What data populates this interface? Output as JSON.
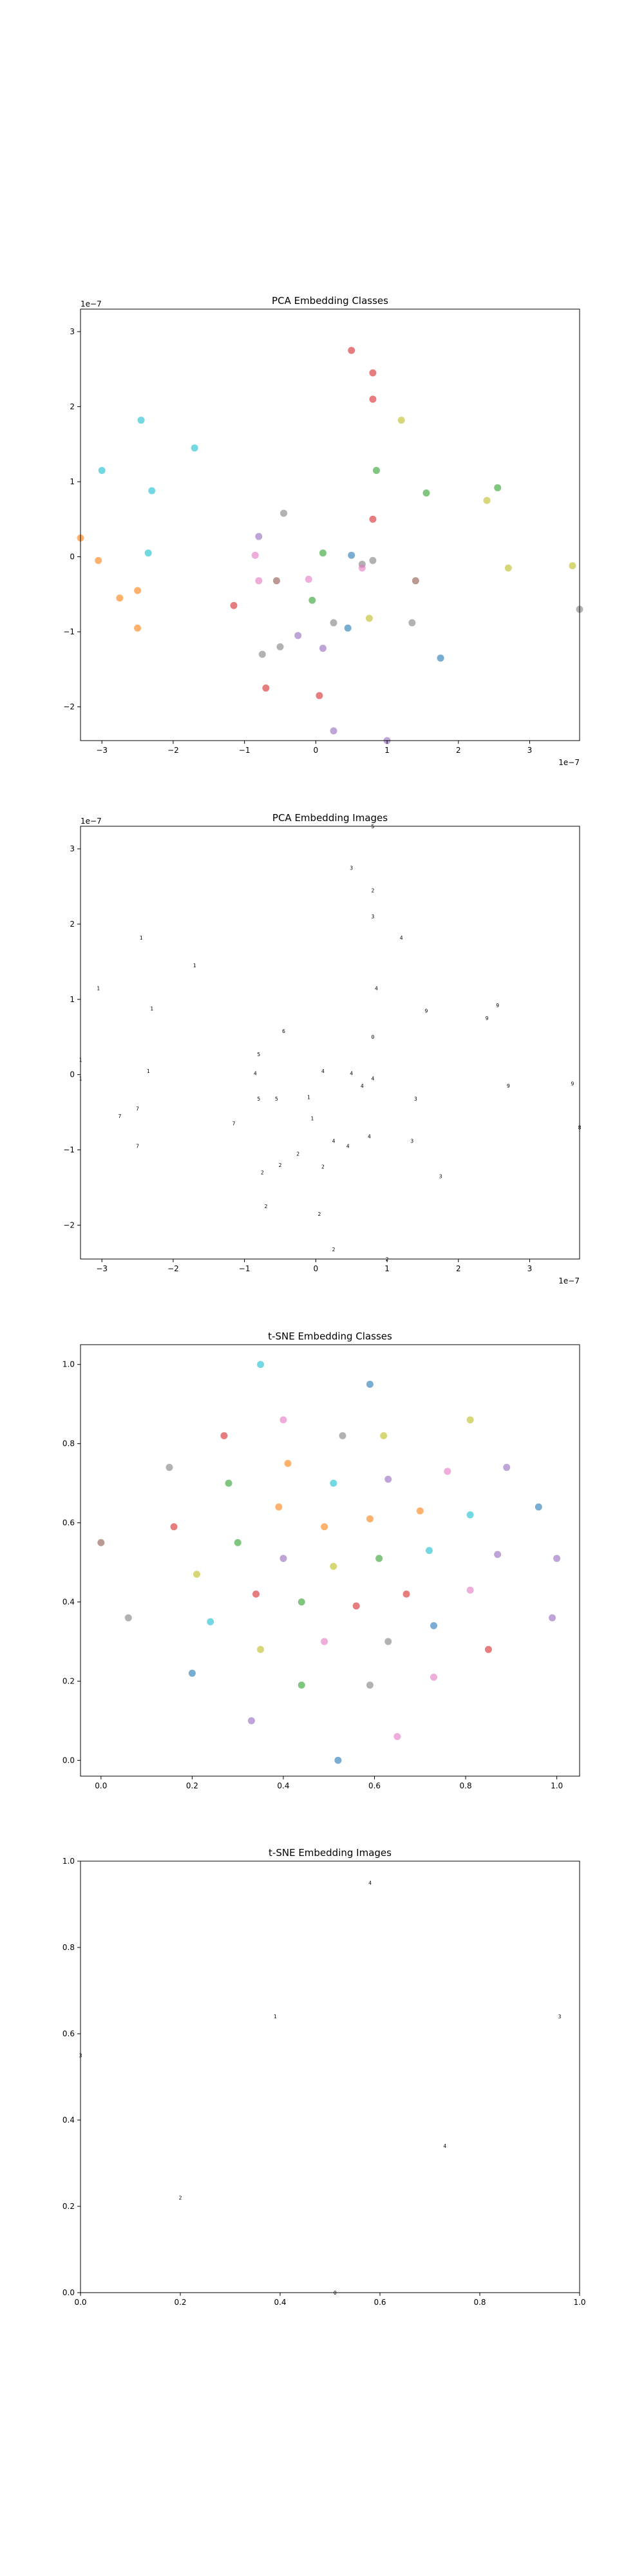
{
  "palette": [
    "#1f77b4",
    "#ff7f0e",
    "#2ca02c",
    "#d62728",
    "#9467bd",
    "#8c564b",
    "#e377c2",
    "#7f7f7f",
    "#bcbd22",
    "#17becf"
  ],
  "chart_data": [
    {
      "type": "scatter",
      "title": "PCA Embedding Classes",
      "xlim": [
        -3.3,
        3.7
      ],
      "ylim": [
        -2.45,
        3.3
      ],
      "xticks": [
        {
          "v": -3,
          "label": "−3"
        },
        {
          "v": -2,
          "label": "−2"
        },
        {
          "v": -1,
          "label": "−1"
        },
        {
          "v": 0,
          "label": "0"
        },
        {
          "v": 1,
          "label": "1"
        },
        {
          "v": 2,
          "label": "2"
        },
        {
          "v": 3,
          "label": "3"
        }
      ],
      "yticks": [
        {
          "v": -2,
          "label": "−2"
        },
        {
          "v": -1,
          "label": "−1"
        },
        {
          "v": 0,
          "label": "0"
        },
        {
          "v": 1,
          "label": "1"
        },
        {
          "v": 2,
          "label": "2"
        },
        {
          "v": 3,
          "label": "3"
        }
      ],
      "x_offset_label": "1e−7",
      "y_offset_label": "1e−7",
      "points": [
        {
          "x": -3.3,
          "y": 0.25,
          "c": 1
        },
        {
          "x": -3.05,
          "y": -0.05,
          "c": 1
        },
        {
          "x": -2.75,
          "y": -0.55,
          "c": 1
        },
        {
          "x": -2.5,
          "y": -0.45,
          "c": 1
        },
        {
          "x": -2.5,
          "y": -0.95,
          "c": 1
        },
        {
          "x": -3.0,
          "y": 1.15,
          "c": 9
        },
        {
          "x": -2.45,
          "y": 1.82,
          "c": 9
        },
        {
          "x": -2.3,
          "y": 0.88,
          "c": 9
        },
        {
          "x": -2.35,
          "y": 0.05,
          "c": 9
        },
        {
          "x": -1.7,
          "y": 1.45,
          "c": 9
        },
        {
          "x": 0.5,
          "y": 2.75,
          "c": 3
        },
        {
          "x": 0.8,
          "y": 2.45,
          "c": 3
        },
        {
          "x": 0.8,
          "y": 2.1,
          "c": 3
        },
        {
          "x": 0.8,
          "y": 0.5,
          "c": 3
        },
        {
          "x": -1.15,
          "y": -0.65,
          "c": 3
        },
        {
          "x": -0.7,
          "y": -1.75,
          "c": 3
        },
        {
          "x": 0.05,
          "y": -1.85,
          "c": 3
        },
        {
          "x": 1.2,
          "y": 1.82,
          "c": 8
        },
        {
          "x": 2.4,
          "y": 0.75,
          "c": 8
        },
        {
          "x": 2.7,
          "y": -0.15,
          "c": 8
        },
        {
          "x": 3.6,
          "y": -0.12,
          "c": 8
        },
        {
          "x": 0.75,
          "y": -0.82,
          "c": 8
        },
        {
          "x": 0.85,
          "y": 1.15,
          "c": 2
        },
        {
          "x": 1.55,
          "y": 0.85,
          "c": 2
        },
        {
          "x": 2.55,
          "y": 0.92,
          "c": 2
        },
        {
          "x": 0.1,
          "y": 0.05,
          "c": 2
        },
        {
          "x": -0.05,
          "y": -0.58,
          "c": 2
        },
        {
          "x": -0.8,
          "y": 0.27,
          "c": 4
        },
        {
          "x": -0.25,
          "y": -1.05,
          "c": 4
        },
        {
          "x": 0.1,
          "y": -1.22,
          "c": 4
        },
        {
          "x": 0.25,
          "y": -2.32,
          "c": 4
        },
        {
          "x": 1.0,
          "y": -2.45,
          "c": 4
        },
        {
          "x": -0.45,
          "y": 0.58,
          "c": 7
        },
        {
          "x": 0.65,
          "y": -0.1,
          "c": 7
        },
        {
          "x": 0.8,
          "y": -0.05,
          "c": 7
        },
        {
          "x": 0.25,
          "y": -0.88,
          "c": 7
        },
        {
          "x": 1.35,
          "y": -0.88,
          "c": 7
        },
        {
          "x": -0.5,
          "y": -1.2,
          "c": 7
        },
        {
          "x": -0.75,
          "y": -1.3,
          "c": 7
        },
        {
          "x": 3.7,
          "y": -0.7,
          "c": 7
        },
        {
          "x": -0.85,
          "y": 0.02,
          "c": 6
        },
        {
          "x": -0.8,
          "y": -0.32,
          "c": 6
        },
        {
          "x": -0.1,
          "y": -0.3,
          "c": 6
        },
        {
          "x": 0.65,
          "y": -0.15,
          "c": 6
        },
        {
          "x": -0.55,
          "y": -0.32,
          "c": 5
        },
        {
          "x": 1.4,
          "y": -0.32,
          "c": 5
        },
        {
          "x": 0.5,
          "y": 0.02,
          "c": 0
        },
        {
          "x": 0.45,
          "y": -0.95,
          "c": 0
        },
        {
          "x": 1.75,
          "y": -1.35,
          "c": 0
        }
      ]
    },
    {
      "type": "scatter",
      "title": "PCA Embedding Images",
      "xlim": [
        -3.3,
        3.7
      ],
      "ylim": [
        -2.45,
        3.3
      ],
      "xticks": [
        {
          "v": -3,
          "label": "−3"
        },
        {
          "v": -2,
          "label": "−2"
        },
        {
          "v": -1,
          "label": "−1"
        },
        {
          "v": 0,
          "label": "0"
        },
        {
          "v": 1,
          "label": "1"
        },
        {
          "v": 2,
          "label": "2"
        },
        {
          "v": 3,
          "label": "3"
        }
      ],
      "yticks": [
        {
          "v": -2,
          "label": "−2"
        },
        {
          "v": -1,
          "label": "−1"
        },
        {
          "v": 0,
          "label": "0"
        },
        {
          "v": 1,
          "label": "1"
        },
        {
          "v": 2,
          "label": "2"
        },
        {
          "v": 3,
          "label": "3"
        }
      ],
      "x_offset_label": "1e−7",
      "y_offset_label": "1e−7",
      "markers": [
        {
          "x": -3.3,
          "y": 0.2,
          "g": "1"
        },
        {
          "x": -3.05,
          "y": 1.15,
          "g": "1"
        },
        {
          "x": -2.45,
          "y": 1.82,
          "g": "1"
        },
        {
          "x": -2.3,
          "y": 0.88,
          "g": "1"
        },
        {
          "x": -2.35,
          "y": 0.05,
          "g": "1"
        },
        {
          "x": -1.7,
          "y": 1.45,
          "g": "1"
        },
        {
          "x": -2.75,
          "y": -0.55,
          "g": "7"
        },
        {
          "x": -2.5,
          "y": -0.95,
          "g": "7"
        },
        {
          "x": -3.3,
          "y": -0.05,
          "g": "1"
        },
        {
          "x": -2.5,
          "y": -0.45,
          "g": "7"
        },
        {
          "x": 0.8,
          "y": 3.3,
          "g": "5"
        },
        {
          "x": 0.5,
          "y": 2.75,
          "g": "3"
        },
        {
          "x": 0.8,
          "y": 2.45,
          "g": "2"
        },
        {
          "x": 0.8,
          "y": 2.1,
          "g": "3"
        },
        {
          "x": 1.2,
          "y": 1.82,
          "g": "4"
        },
        {
          "x": 0.85,
          "y": 1.15,
          "g": "4"
        },
        {
          "x": 1.55,
          "y": 0.85,
          "g": "9"
        },
        {
          "x": 2.55,
          "y": 0.92,
          "g": "9"
        },
        {
          "x": 2.4,
          "y": 0.75,
          "g": "9"
        },
        {
          "x": 0.8,
          "y": 0.5,
          "g": "0"
        },
        {
          "x": -0.45,
          "y": 0.58,
          "g": "6"
        },
        {
          "x": -0.8,
          "y": 0.27,
          "g": "5"
        },
        {
          "x": -0.85,
          "y": 0.02,
          "g": "4"
        },
        {
          "x": 0.1,
          "y": 0.05,
          "g": "4"
        },
        {
          "x": 0.5,
          "y": 0.02,
          "g": "4"
        },
        {
          "x": 0.8,
          "y": -0.05,
          "g": "4"
        },
        {
          "x": 0.65,
          "y": -0.15,
          "g": "4"
        },
        {
          "x": -0.8,
          "y": -0.32,
          "g": "5"
        },
        {
          "x": -0.55,
          "y": -0.32,
          "g": "5"
        },
        {
          "x": -0.1,
          "y": -0.3,
          "g": "1"
        },
        {
          "x": 1.4,
          "y": -0.32,
          "g": "3"
        },
        {
          "x": 2.7,
          "y": -0.15,
          "g": "9"
        },
        {
          "x": 3.6,
          "y": -0.12,
          "g": "9"
        },
        {
          "x": 3.7,
          "y": -0.7,
          "g": "8"
        },
        {
          "x": -1.15,
          "y": -0.65,
          "g": "7"
        },
        {
          "x": -0.05,
          "y": -0.58,
          "g": "1"
        },
        {
          "x": 0.75,
          "y": -0.82,
          "g": "4"
        },
        {
          "x": 0.25,
          "y": -0.88,
          "g": "4"
        },
        {
          "x": 1.35,
          "y": -0.88,
          "g": "3"
        },
        {
          "x": 0.45,
          "y": -0.95,
          "g": "4"
        },
        {
          "x": -0.25,
          "y": -1.05,
          "g": "2"
        },
        {
          "x": -0.5,
          "y": -1.2,
          "g": "2"
        },
        {
          "x": 0.1,
          "y": -1.22,
          "g": "2"
        },
        {
          "x": -0.75,
          "y": -1.3,
          "g": "2"
        },
        {
          "x": 1.75,
          "y": -1.35,
          "g": "3"
        },
        {
          "x": -0.7,
          "y": -1.75,
          "g": "2"
        },
        {
          "x": 0.05,
          "y": -1.85,
          "g": "2"
        },
        {
          "x": 0.25,
          "y": -2.32,
          "g": "2"
        },
        {
          "x": 1.0,
          "y": -2.45,
          "g": "2"
        }
      ]
    },
    {
      "type": "scatter",
      "title": "t-SNE Embedding Classes",
      "xlim": [
        -0.045,
        1.05
      ],
      "ylim": [
        -0.04,
        1.05
      ],
      "xticks": [
        {
          "v": 0,
          "label": "0.0"
        },
        {
          "v": 0.2,
          "label": "0.2"
        },
        {
          "v": 0.4,
          "label": "0.4"
        },
        {
          "v": 0.6,
          "label": "0.6"
        },
        {
          "v": 0.8,
          "label": "0.8"
        },
        {
          "v": 1.0,
          "label": "1.0"
        }
      ],
      "yticks": [
        {
          "v": 0,
          "label": "0.0"
        },
        {
          "v": 0.2,
          "label": "0.2"
        },
        {
          "v": 0.4,
          "label": "0.4"
        },
        {
          "v": 0.6,
          "label": "0.6"
        },
        {
          "v": 0.8,
          "label": "0.8"
        },
        {
          "v": 1.0,
          "label": "1.0"
        }
      ],
      "points": [
        {
          "x": 0.35,
          "y": 1.0,
          "c": 9
        },
        {
          "x": 0.59,
          "y": 0.95,
          "c": 0
        },
        {
          "x": 0.4,
          "y": 0.86,
          "c": 6
        },
        {
          "x": 0.81,
          "y": 0.86,
          "c": 8
        },
        {
          "x": 0.27,
          "y": 0.82,
          "c": 3
        },
        {
          "x": 0.53,
          "y": 0.82,
          "c": 7
        },
        {
          "x": 0.62,
          "y": 0.82,
          "c": 8
        },
        {
          "x": 0.41,
          "y": 0.75,
          "c": 1
        },
        {
          "x": 0.15,
          "y": 0.74,
          "c": 7
        },
        {
          "x": 0.76,
          "y": 0.73,
          "c": 6
        },
        {
          "x": 0.89,
          "y": 0.74,
          "c": 4
        },
        {
          "x": 0.63,
          "y": 0.71,
          "c": 4
        },
        {
          "x": 0.28,
          "y": 0.7,
          "c": 2
        },
        {
          "x": 0.51,
          "y": 0.7,
          "c": 9
        },
        {
          "x": 0.39,
          "y": 0.64,
          "c": 1
        },
        {
          "x": 0.7,
          "y": 0.63,
          "c": 1
        },
        {
          "x": 0.96,
          "y": 0.64,
          "c": 0
        },
        {
          "x": 0.81,
          "y": 0.62,
          "c": 9
        },
        {
          "x": 0.59,
          "y": 0.61,
          "c": 1
        },
        {
          "x": 0.16,
          "y": 0.59,
          "c": 3
        },
        {
          "x": 0.49,
          "y": 0.59,
          "c": 1
        },
        {
          "x": 0.0,
          "y": 0.55,
          "c": 5
        },
        {
          "x": 0.3,
          "y": 0.55,
          "c": 2
        },
        {
          "x": 0.72,
          "y": 0.53,
          "c": 9
        },
        {
          "x": 0.87,
          "y": 0.52,
          "c": 4
        },
        {
          "x": 0.4,
          "y": 0.51,
          "c": 4
        },
        {
          "x": 0.61,
          "y": 0.51,
          "c": 2
        },
        {
          "x": 1.0,
          "y": 0.51,
          "c": 4
        },
        {
          "x": 0.51,
          "y": 0.49,
          "c": 8
        },
        {
          "x": 0.21,
          "y": 0.47,
          "c": 8
        },
        {
          "x": 0.67,
          "y": 0.42,
          "c": 3
        },
        {
          "x": 0.81,
          "y": 0.43,
          "c": 6
        },
        {
          "x": 0.34,
          "y": 0.42,
          "c": 3
        },
        {
          "x": 0.44,
          "y": 0.4,
          "c": 2
        },
        {
          "x": 0.56,
          "y": 0.39,
          "c": 3
        },
        {
          "x": 0.06,
          "y": 0.36,
          "c": 7
        },
        {
          "x": 0.24,
          "y": 0.35,
          "c": 9
        },
        {
          "x": 0.99,
          "y": 0.36,
          "c": 4
        },
        {
          "x": 0.73,
          "y": 0.34,
          "c": 0
        },
        {
          "x": 0.63,
          "y": 0.3,
          "c": 7
        },
        {
          "x": 0.49,
          "y": 0.3,
          "c": 6
        },
        {
          "x": 0.35,
          "y": 0.28,
          "c": 8
        },
        {
          "x": 0.85,
          "y": 0.28,
          "c": 3
        },
        {
          "x": 0.2,
          "y": 0.22,
          "c": 0
        },
        {
          "x": 0.73,
          "y": 0.21,
          "c": 6
        },
        {
          "x": 0.44,
          "y": 0.19,
          "c": 2
        },
        {
          "x": 0.59,
          "y": 0.19,
          "c": 7
        },
        {
          "x": 0.33,
          "y": 0.1,
          "c": 4
        },
        {
          "x": 0.65,
          "y": 0.06,
          "c": 6
        },
        {
          "x": 0.52,
          "y": 0.0,
          "c": 0
        }
      ]
    },
    {
      "type": "scatter",
      "title": "t-SNE Embedding Images",
      "xlim": [
        0,
        1
      ],
      "ylim": [
        0,
        1
      ],
      "xticks": [
        {
          "v": 0,
          "label": "0.0"
        },
        {
          "v": 0.2,
          "label": "0.2"
        },
        {
          "v": 0.4,
          "label": "0.4"
        },
        {
          "v": 0.6,
          "label": "0.6"
        },
        {
          "v": 0.8,
          "label": "0.8"
        },
        {
          "v": 1.0,
          "label": "1.0"
        }
      ],
      "yticks": [
        {
          "v": 0,
          "label": "0.0"
        },
        {
          "v": 0.2,
          "label": "0.2"
        },
        {
          "v": 0.4,
          "label": "0.4"
        },
        {
          "v": 0.6,
          "label": "0.6"
        },
        {
          "v": 0.8,
          "label": "0.8"
        },
        {
          "v": 1.0,
          "label": "1.0"
        }
      ],
      "markers": [
        {
          "x": 0.58,
          "y": 0.95,
          "g": "4"
        },
        {
          "x": 0.39,
          "y": 0.64,
          "g": "1"
        },
        {
          "x": 0.96,
          "y": 0.64,
          "g": "3"
        },
        {
          "x": 0.0,
          "y": 0.55,
          "g": "3"
        },
        {
          "x": 0.73,
          "y": 0.34,
          "g": "4"
        },
        {
          "x": 0.2,
          "y": 0.22,
          "g": "2"
        },
        {
          "x": 0.51,
          "y": 0.0,
          "g": "0"
        }
      ]
    }
  ]
}
